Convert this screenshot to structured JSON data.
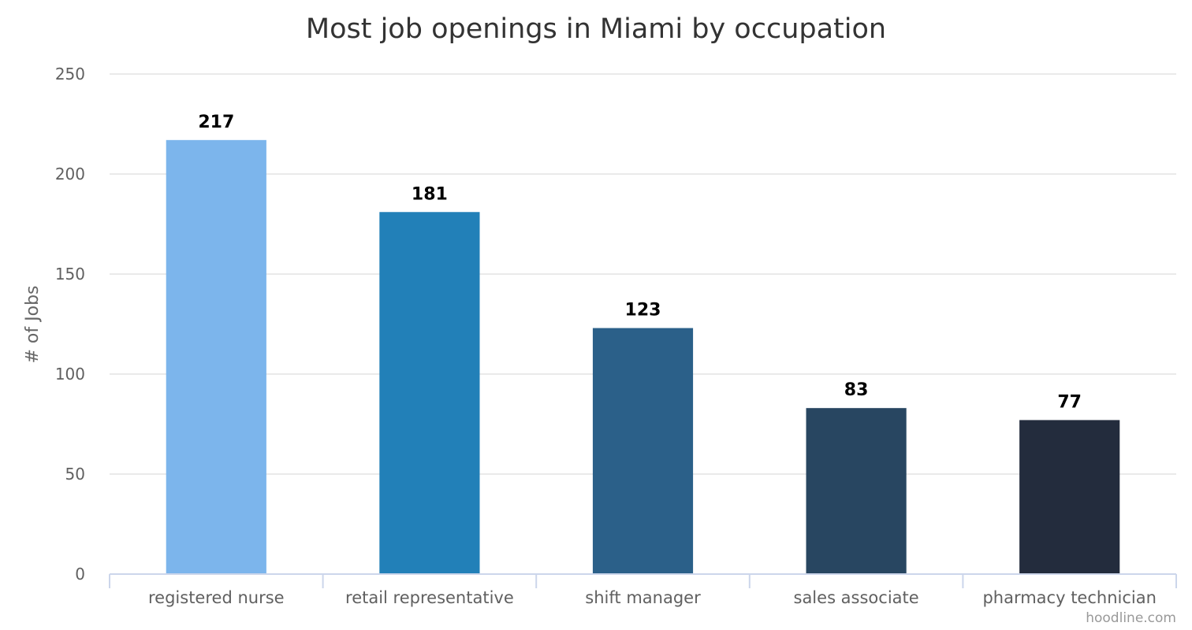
{
  "chart_data": {
    "type": "bar",
    "title": "Most job openings in Miami by occupation",
    "ylabel": "# of Jobs",
    "xlabel": "",
    "categories": [
      "registered nurse",
      "retail representative",
      "shift manager",
      "sales associate",
      "pharmacy technician"
    ],
    "values": [
      217,
      181,
      123,
      83,
      77
    ],
    "colors": [
      "#7cb5ec",
      "#2280b8",
      "#2b6089",
      "#284661",
      "#232c3d"
    ],
    "ylim": [
      0,
      250
    ],
    "yticks": [
      0,
      50,
      100,
      150,
      200,
      250
    ],
    "grid": true,
    "legend": "none"
  },
  "credit": "hoodline.com"
}
